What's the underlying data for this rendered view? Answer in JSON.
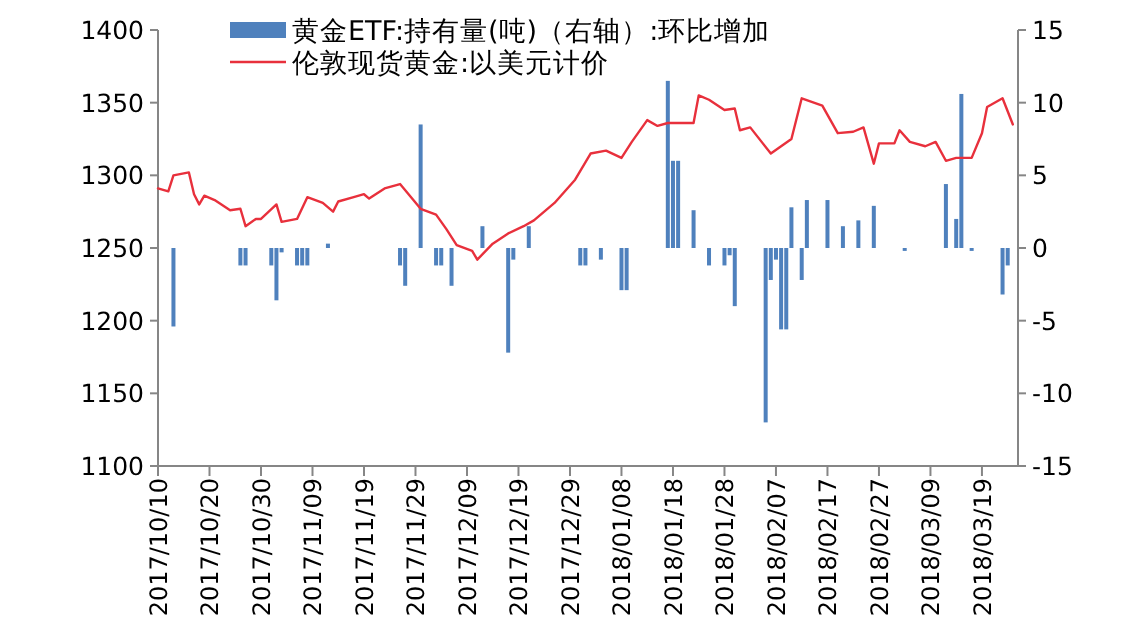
{
  "chart_data": {
    "type": "line",
    "legend": "top",
    "xlim": [
      "2017-10-10",
      "2018-03-26"
    ],
    "xticks": [
      {
        "value": "2017-10-10",
        "label": "2017/10/10"
      },
      {
        "value": "2017-10-20",
        "label": "2017/10/20"
      },
      {
        "value": "2017-10-30",
        "label": "2017/10/30"
      },
      {
        "value": "2017-11-09",
        "label": "2017/11/09"
      },
      {
        "value": "2017-11-19",
        "label": "2017/11/19"
      },
      {
        "value": "2017-11-29",
        "label": "2017/11/29"
      },
      {
        "value": "2017-12-09",
        "label": "2017/12/09"
      },
      {
        "value": "2017-12-19",
        "label": "2017/12/19"
      },
      {
        "value": "2017-12-29",
        "label": "2017/12/29"
      },
      {
        "value": "2018-01-08",
        "label": "2018/01/08"
      },
      {
        "value": "2018-01-18",
        "label": "2018/01/18"
      },
      {
        "value": "2018-01-28",
        "label": "2018/01/28"
      },
      {
        "value": "2018-02-07",
        "label": "2018/02/07"
      },
      {
        "value": "2018-02-17",
        "label": "2018/02/17"
      },
      {
        "value": "2018-02-27",
        "label": "2018/02/27"
      },
      {
        "value": "2018-03-09",
        "label": "2018/03/09"
      },
      {
        "value": "2018-03-19",
        "label": "2018/03/19"
      }
    ],
    "ylim": [
      1100,
      1400
    ],
    "yticks": [
      1100,
      1150,
      1200,
      1250,
      1300,
      1350,
      1400
    ],
    "y2lim": [
      -15,
      15
    ],
    "y2ticks": [
      -15,
      -10,
      -5,
      0,
      5,
      10,
      15
    ],
    "series": [
      {
        "type": "bar",
        "axis": "y2",
        "name": "黄金ETF:持有量(吨)（右轴）:环比增加",
        "color": "#4f81bd",
        "x": [
          "2017-10-13",
          "2017-10-26",
          "2017-10-27",
          "2017-11-01",
          "2017-11-02",
          "2017-11-03",
          "2017-11-06",
          "2017-11-07",
          "2017-11-08",
          "2017-11-12",
          "2017-11-26",
          "2017-11-27",
          "2017-11-30",
          "2017-12-03",
          "2017-12-04",
          "2017-12-06",
          "2017-12-12",
          "2017-12-17",
          "2017-12-18",
          "2017-12-21",
          "2017-12-31",
          "2018-01-01",
          "2018-01-04",
          "2018-01-08",
          "2018-01-09",
          "2018-01-17",
          "2018-01-18",
          "2018-01-19",
          "2018-01-22",
          "2018-01-25",
          "2018-01-28",
          "2018-01-29",
          "2018-01-30",
          "2018-02-05",
          "2018-02-06",
          "2018-02-07",
          "2018-02-08",
          "2018-02-09",
          "2018-02-10",
          "2018-02-12",
          "2018-02-13",
          "2018-02-17",
          "2018-02-20",
          "2018-02-23",
          "2018-02-26",
          "2018-03-04",
          "2018-03-12",
          "2018-03-14",
          "2018-03-15",
          "2018-03-17",
          "2018-03-23",
          "2018-03-24"
        ],
        "values": [
          -5.4,
          -1.2,
          -1.2,
          -1.2,
          -3.6,
          -0.3,
          -1.2,
          -1.2,
          -1.2,
          0.3,
          -1.2,
          -2.6,
          8.5,
          -1.2,
          -1.2,
          -2.6,
          1.5,
          -7.2,
          -0.8,
          1.5,
          -1.2,
          -1.2,
          -0.8,
          -2.9,
          -2.9,
          11.5,
          6.0,
          6.0,
          2.6,
          -1.2,
          -1.2,
          -0.5,
          -4.0,
          -12.0,
          -2.2,
          -0.8,
          -5.6,
          -5.6,
          2.8,
          -2.2,
          3.3,
          3.3,
          1.5,
          1.9,
          2.9,
          -0.2,
          4.4,
          2.0,
          10.6,
          -0.2,
          -3.2,
          -1.2
        ]
      },
      {
        "name": "伦敦现货黄金:以美元计价",
        "color": "#e8303c",
        "x": [
          "2017-10-10",
          "2017-10-12",
          "2017-10-13",
          "2017-10-16",
          "2017-10-17",
          "2017-10-18",
          "2017-10-19",
          "2017-10-21",
          "2017-10-24",
          "2017-10-26",
          "2017-10-27",
          "2017-10-29",
          "2017-10-30",
          "2017-11-02",
          "2017-11-03",
          "2017-11-06",
          "2017-11-08",
          "2017-11-11",
          "2017-11-13",
          "2017-11-14",
          "2017-11-17",
          "2017-11-19",
          "2017-11-20",
          "2017-11-23",
          "2017-11-26",
          "2017-11-30",
          "2017-12-03",
          "2017-12-05",
          "2017-12-07",
          "2017-12-10",
          "2017-12-11",
          "2017-12-14",
          "2017-12-17",
          "2017-12-20",
          "2017-12-22",
          "2017-12-26",
          "2017-12-30",
          "2018-01-02",
          "2018-01-05",
          "2018-01-08",
          "2018-01-10",
          "2018-01-13",
          "2018-01-15",
          "2018-01-17",
          "2018-01-22",
          "2018-01-23",
          "2018-01-25",
          "2018-01-28",
          "2018-01-30",
          "2018-01-31",
          "2018-02-02",
          "2018-02-06",
          "2018-02-10",
          "2018-02-12",
          "2018-02-16",
          "2018-02-19",
          "2018-02-22",
          "2018-02-24",
          "2018-02-26",
          "2018-02-27",
          "2018-03-02",
          "2018-03-03",
          "2018-03-05",
          "2018-03-08",
          "2018-03-10",
          "2018-03-12",
          "2018-03-14",
          "2018-03-17",
          "2018-03-19",
          "2018-03-20",
          "2018-03-23",
          "2018-03-25"
        ],
        "values": [
          1291,
          1289,
          1300,
          1302,
          1287,
          1280,
          1286,
          1283,
          1276,
          1277,
          1265,
          1270,
          1270,
          1280,
          1268,
          1270,
          1285,
          1281,
          1275,
          1282,
          1285,
          1287,
          1284,
          1291,
          1294,
          1277,
          1273,
          1263,
          1252,
          1248,
          1242,
          1253,
          1260,
          1265,
          1269,
          1281,
          1297,
          1315,
          1317,
          1312,
          1323,
          1338,
          1334,
          1336,
          1336,
          1355,
          1352,
          1345,
          1346,
          1331,
          1333,
          1315,
          1325,
          1353,
          1348,
          1329,
          1330,
          1333,
          1308,
          1322,
          1322,
          1331,
          1323,
          1320,
          1323,
          1310,
          1312,
          1312,
          1329,
          1347,
          1353,
          1335
        ]
      }
    ]
  }
}
